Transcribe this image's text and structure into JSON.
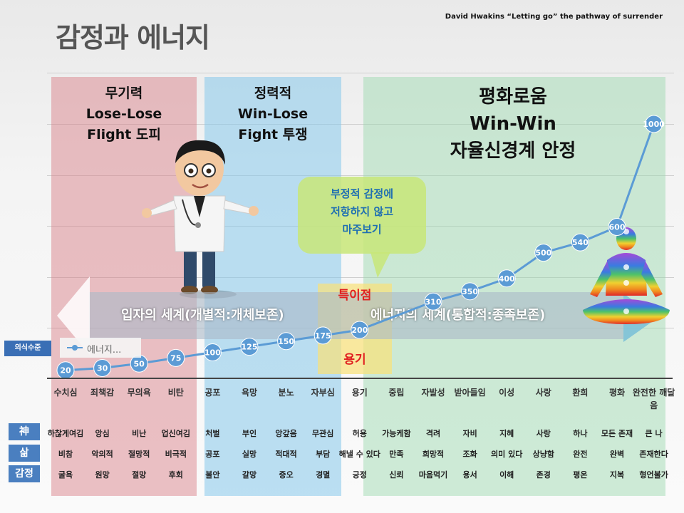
{
  "header": {
    "title": "감정과 에너지",
    "credit": "David Hwakins “Letting go” the pathway of surrender"
  },
  "zones": {
    "red": [
      "무기력",
      "Lose-Lose",
      "Flight 도피"
    ],
    "blue": [
      "정력적",
      "Win-Lose",
      "Fight 투쟁"
    ],
    "green": [
      "평화로움",
      "Win-Win",
      "자율신경계 안정"
    ]
  },
  "bubble": [
    "부정적 감정에",
    "저항하지 않고",
    "마주보기"
  ],
  "band": {
    "left": "입자의 세계(개별적:개체보존)",
    "right": "에너지의 세계(통합적:종족보존)"
  },
  "special_point": "특이점",
  "courage": "용기",
  "legend": {
    "box_label": "의식수준",
    "series_label": "에너지..."
  },
  "colors": {
    "series": "#5b9bd5",
    "zone_red": "#d67880",
    "zone_blue": "#87c8eb",
    "zone_green": "#96d7aa",
    "accent_red": "#e02020",
    "row_label_bg": "#4a7fc0"
  },
  "chart_data": {
    "type": "line",
    "categories": [
      "수치심",
      "죄책감",
      "무의욕",
      "비탄",
      "공포",
      "욕망",
      "분노",
      "자부심",
      "용기",
      "중립",
      "자발성",
      "받아들임",
      "이성",
      "사랑",
      "환희",
      "평화",
      "완전한 깨달음"
    ],
    "series": [
      {
        "name": "에너지...",
        "values": [
          20,
          30,
          50,
          75,
          100,
          125,
          150,
          175,
          200,
          null,
          310,
          350,
          400,
          500,
          540,
          600,
          1000
        ]
      }
    ],
    "ylim": [
      0,
      1000
    ],
    "grid": true,
    "legend_position": "bottom-left"
  },
  "rows": [
    {
      "label": "神",
      "cells": [
        "하찮게여김",
        "앙심",
        "비난",
        "업신여김",
        "처벌",
        "부인",
        "앙갚음",
        "무관심",
        "허용",
        "가능케함",
        "격려",
        "자비",
        "지혜",
        "사랑",
        "하나",
        "모든 존재",
        "큰 나"
      ]
    },
    {
      "label": "삶",
      "cells": [
        "비참",
        "악의적",
        "절망적",
        "비극적",
        "공포",
        "실망",
        "적대적",
        "부담",
        "해낼 수 있다",
        "만족",
        "희망적",
        "조화",
        "의미 있다",
        "상냥함",
        "완전",
        "완벽",
        "존재한다"
      ]
    },
    {
      "label": "감정",
      "cells": [
        "굴욕",
        "원망",
        "절망",
        "후회",
        "불안",
        "갈망",
        "증오",
        "경멸",
        "긍정",
        "신뢰",
        "마음먹기",
        "용서",
        "이해",
        "존경",
        "평온",
        "지복",
        "형언불가"
      ]
    }
  ]
}
